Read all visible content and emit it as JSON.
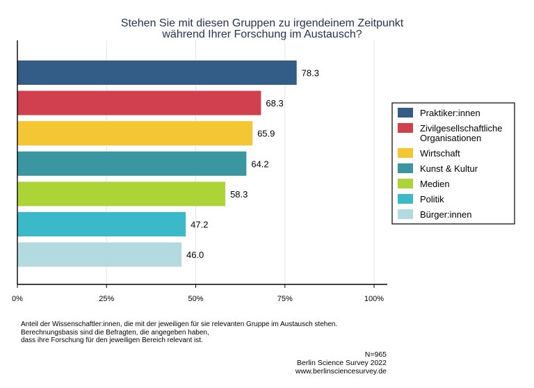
{
  "chart_data": {
    "type": "bar",
    "orientation": "horizontal",
    "title": [
      "Stehen Sie mit diesen Gruppen zu irgendeinem Zeitpunkt",
      "während Ihrer Forschung im Austausch?"
    ],
    "categories": [
      "Praktiker:innen",
      "Zivilgesellschaftliche Organisationen",
      "Wirtschaft",
      "Kunst & Kultur",
      "Medien",
      "Politik",
      "Bürger:innen"
    ],
    "legend_labels": [
      [
        "Praktiker:innen"
      ],
      [
        "Zivilgesellschaftliche",
        "Organisationen"
      ],
      [
        "Wirtschaft"
      ],
      [
        "Kunst & Kultur"
      ],
      [
        "Medien"
      ],
      [
        "Politik"
      ],
      [
        "Bürger:innen"
      ]
    ],
    "values": [
      78.3,
      68.3,
      65.9,
      64.2,
      58.3,
      47.2,
      46.0
    ],
    "value_labels": [
      "78.3",
      "68.3",
      "65.9",
      "64.2",
      "58.3",
      "47.2",
      "46.0"
    ],
    "colors": [
      "#335c86",
      "#d0404e",
      "#f5c633",
      "#3a97a2",
      "#acd436",
      "#3ab9c8",
      "#b3dade"
    ],
    "xlim": [
      0,
      100
    ],
    "xticks": [
      0,
      25,
      50,
      75,
      100
    ],
    "xtick_labels": [
      "0%",
      "25%",
      "50%",
      "75%",
      "100%"
    ],
    "grid": true,
    "legend_position": "right"
  },
  "footnote": [
    "Anteil der Wissenschaftler:innen, die mit der jeweiligen für sie relevanten Gruppe im Austausch stehen.",
    "Berechnungsbasis sind die Befragten, die angegeben haben,",
    "dass ihre Forschung für den jeweiligen Bereich relevant ist."
  ],
  "source": [
    "N=965",
    "Berlin Science Survey 2022",
    "www.berlinsciencesurvey.de"
  ]
}
